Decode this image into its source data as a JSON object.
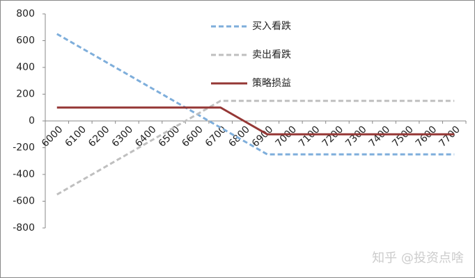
{
  "chart_data": {
    "type": "line",
    "categories": [
      "6000",
      "6100",
      "6200",
      "6300",
      "6400",
      "6500",
      "6600",
      "6700",
      "6800",
      "6900",
      "7000",
      "7100",
      "7200",
      "7300",
      "7400",
      "7500",
      "7600",
      "7700"
    ],
    "series": [
      {
        "name": "买入看跌",
        "color": "#7eaedb",
        "dash": true,
        "values": [
          650,
          550,
          450,
          350,
          250,
          150,
          50,
          -50,
          -150,
          -250,
          -250,
          -250,
          -250,
          -250,
          -250,
          -250,
          -250,
          -250
        ]
      },
      {
        "name": "卖出看跌",
        "color": "#bfbfbf",
        "dash": true,
        "values": [
          -550,
          -450,
          -350,
          -250,
          -150,
          -50,
          50,
          150,
          150,
          150,
          150,
          150,
          150,
          150,
          150,
          150,
          150,
          150
        ]
      },
      {
        "name": "策略损益",
        "color": "#953735",
        "dash": false,
        "values": [
          100,
          100,
          100,
          100,
          100,
          100,
          100,
          100,
          0,
          -100,
          -100,
          -100,
          -100,
          -100,
          -100,
          -100,
          -100,
          -100
        ]
      }
    ],
    "ylim": [
      -800,
      800
    ],
    "yticks": [
      -800,
      -600,
      -400,
      -200,
      0,
      200,
      400,
      600,
      800
    ],
    "grid": false,
    "watermark": "知乎 @投资点啥"
  }
}
